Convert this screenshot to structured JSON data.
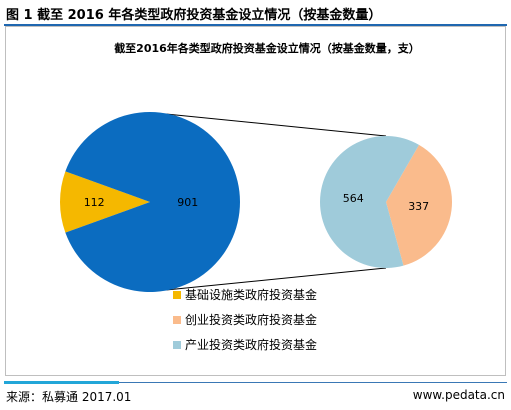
{
  "figure_caption": "图 1 截至 2016 年各类型政府投资基金设立情况（按基金数量）",
  "source": "来源：私募通 2017.01",
  "site": "www.pedata.cn",
  "colors": {
    "infrastructure": "#f5b800",
    "industry": "#0b6cc0",
    "venture": "#fabb8c",
    "industry_sub": "#9fcbda",
    "connector": "#000000"
  },
  "chart_data": {
    "type": "pie",
    "title": "截至2016年各类型政府投资基金设立情况（按基金数量，支）",
    "main_pie": {
      "slices": [
        {
          "label": "基础设施类政府投资基金",
          "value": 112,
          "color_key": "infrastructure"
        },
        {
          "label": "",
          "value": 901,
          "color_key": "industry"
        }
      ]
    },
    "sub_pie": {
      "slices": [
        {
          "label": "创业投资类政府投资基金",
          "value": 337,
          "color_key": "venture"
        },
        {
          "label": "产业投资类政府投资基金",
          "value": 564,
          "color_key": "industry_sub"
        }
      ]
    },
    "legend": [
      {
        "label": "基础设施类政府投资基金",
        "color_key": "infrastructure"
      },
      {
        "label": "创业投资类政府投资基金",
        "color_key": "venture"
      },
      {
        "label": "产业投资类政府投资基金",
        "color_key": "industry_sub"
      }
    ],
    "legend_position": "bottom-center"
  }
}
